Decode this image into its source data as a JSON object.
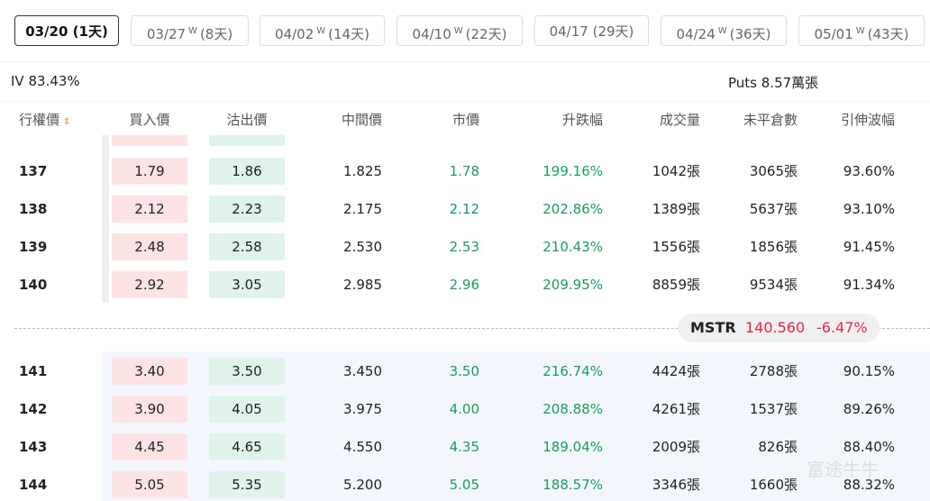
{
  "tabs": [
    {
      "date": "03/20",
      "days": "(1天)"
    },
    {
      "date": "03/27",
      "weekly": "W",
      "days": "(8天)"
    },
    {
      "date": "04/02",
      "weekly": "W",
      "days": "(14天)"
    },
    {
      "date": "04/10",
      "weekly": "W",
      "days": "(22天)"
    },
    {
      "date": "04/17",
      "days": "(29天)"
    },
    {
      "date": "04/24",
      "weekly": "W",
      "days": "(36天)"
    },
    {
      "date": "05/01",
      "weekly": "W",
      "days": "(43天)"
    }
  ],
  "summary": {
    "iv": "IV 83.43%",
    "puts": "Puts 8.57萬張"
  },
  "table": {
    "headers": [
      "行權價",
      "買入價",
      "沽出價",
      "中間價",
      "市價",
      "升跌幅",
      "成交量",
      "未平倉數",
      "引伸波幅"
    ],
    "rows": [
      [
        "137",
        "1.79",
        "1.86",
        "1.825",
        "1.78",
        "199.16%",
        "1042張",
        "3065張",
        "93.60%"
      ],
      [
        "138",
        "2.12",
        "2.23",
        "2.175",
        "2.12",
        "202.86%",
        "1389張",
        "5637張",
        "93.10%"
      ],
      [
        "139",
        "2.48",
        "2.58",
        "2.530",
        "2.53",
        "210.43%",
        "1556張",
        "1856張",
        "91.45%"
      ],
      [
        "140",
        "2.92",
        "3.05",
        "2.985",
        "2.96",
        "209.95%",
        "8859張",
        "9534張",
        "91.34%"
      ],
      [
        "141",
        "3.40",
        "3.50",
        "3.450",
        "3.50",
        "216.74%",
        "4424張",
        "2788張",
        "90.15%"
      ],
      [
        "142",
        "3.90",
        "4.05",
        "3.975",
        "4.00",
        "208.88%",
        "4261張",
        "1537張",
        "89.26%"
      ],
      [
        "143",
        "4.45",
        "4.65",
        "4.550",
        "4.35",
        "189.04%",
        "2009張",
        "826張",
        "88.40%"
      ],
      [
        "144",
        "5.05",
        "5.35",
        "5.200",
        "5.05",
        "188.57%",
        "3346張",
        "1660張",
        "88.32%"
      ]
    ]
  },
  "ticker": {
    "symbol": "MSTR",
    "price": "140.560",
    "change": "-6.47%"
  },
  "watermark": "富途牛牛"
}
